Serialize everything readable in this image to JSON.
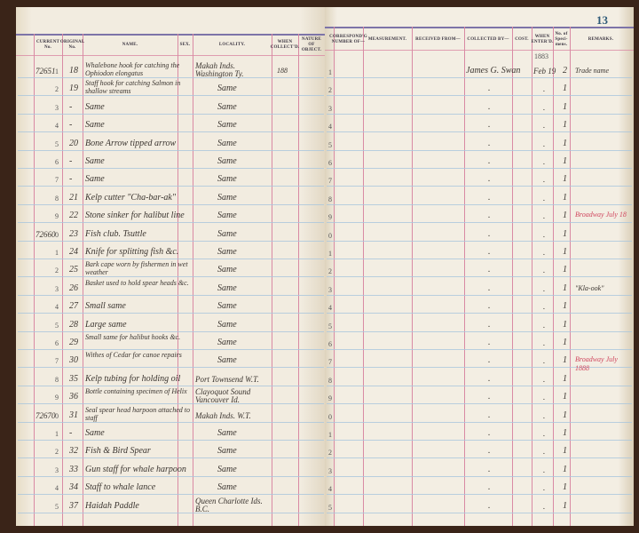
{
  "page_number": "13",
  "left_headers": [
    "CURRENT No.",
    "ORIGINAL No.",
    "NAME.",
    "SEX.",
    "LOCALITY.",
    "WHEN COLLECT'D.",
    "NATURE OF OBJECT."
  ],
  "right_headers": [
    "CORRESPOND'G NUMBER OF—",
    "MEASUREMENT.",
    "RECEIVED FROM—",
    "COLLECTED BY—",
    "COST.",
    "WHEN ENTER'D.",
    "No. of Speci-mens.",
    "REMARKS."
  ],
  "year_note": "1883",
  "rows": [
    {
      "line": "1",
      "current": "72651",
      "original": "18",
      "name": "Whalebone hook for catching the Ophiodon elongatus",
      "locality": "Makah Inds. Washington Ty.",
      "when": "188",
      "collected": "James G. Swan",
      "entered": "Feb 19",
      "specimens": "2",
      "remarks": "Trade name"
    },
    {
      "line": "2",
      "original": "19",
      "name": "Staff hook for catching Salmon in shallow streams",
      "locality": "Same",
      "collected": ".",
      "entered": ".",
      "specimens": "1"
    },
    {
      "line": "3",
      "original": "-",
      "name": "Same",
      "locality": "Same",
      "collected": ".",
      "entered": ".",
      "specimens": "1"
    },
    {
      "line": "4",
      "original": "-",
      "name": "Same",
      "locality": "Same",
      "collected": ".",
      "entered": ".",
      "specimens": "1"
    },
    {
      "line": "5",
      "original": "20",
      "name": "Bone Arrow tipped arrow",
      "locality": "Same",
      "collected": ".",
      "entered": ".",
      "specimens": "1"
    },
    {
      "line": "6",
      "original": "-",
      "name": "Same",
      "locality": "Same",
      "collected": ".",
      "entered": ".",
      "specimens": "1"
    },
    {
      "line": "7",
      "original": "-",
      "name": "Same",
      "locality": "Same",
      "collected": ".",
      "entered": ".",
      "specimens": "1"
    },
    {
      "line": "8",
      "original": "21",
      "name": "Kelp cutter \"Cha-bar-ak\"",
      "locality": "Same",
      "collected": ".",
      "entered": ".",
      "specimens": "1"
    },
    {
      "line": "9",
      "original": "22",
      "name": "Stone sinker for halibut line",
      "locality": "Same",
      "collected": ".",
      "entered": ".",
      "specimens": "1",
      "remarks_red": "Broadway July 18"
    },
    {
      "line": "0",
      "current": "72660",
      "original": "23",
      "name": "Fish club. Tsuttle",
      "locality": "Same",
      "collected": ".",
      "entered": ".",
      "specimens": "1"
    },
    {
      "line": "1",
      "original": "24",
      "name": "Knife for splitting fish &c.",
      "locality": "Same",
      "collected": ".",
      "entered": ".",
      "specimens": "1"
    },
    {
      "line": "2",
      "original": "25",
      "name": "Bark cape worn by fishermen in wet weather",
      "locality": "Same",
      "collected": ".",
      "entered": ".",
      "specimens": "1"
    },
    {
      "line": "3",
      "original": "26",
      "name": "Basket used to hold spear heads &c.",
      "locality": "Same",
      "collected": ".",
      "entered": ".",
      "specimens": "1",
      "remarks": "\"Kla-ook\""
    },
    {
      "line": "4",
      "original": "27",
      "name": "Small same",
      "locality": "Same",
      "collected": ".",
      "entered": ".",
      "specimens": "1"
    },
    {
      "line": "5",
      "original": "28",
      "name": "Large same",
      "locality": "Same",
      "collected": ".",
      "entered": ".",
      "specimens": "1"
    },
    {
      "line": "6",
      "original": "29",
      "name": "Small same for halibut hooks &c.",
      "locality": "Same",
      "collected": ".",
      "entered": ".",
      "specimens": "1"
    },
    {
      "line": "7",
      "original": "30",
      "name": "Withes of Cedar for canoe repairs",
      "locality": "Same",
      "collected": ".",
      "entered": ".",
      "specimens": "1",
      "remarks_red": "Broadway July 1888"
    },
    {
      "line": "8",
      "original": "35",
      "name": "Kelp tubing for holding oil",
      "locality": "Port Townsend W.T.",
      "collected": ".",
      "entered": ".",
      "specimens": "1"
    },
    {
      "line": "9",
      "original": "36",
      "name": "Bottle containing specimen of Helix",
      "locality": "Clayoquot Sound Vancouver Id.",
      "collected": ".",
      "entered": ".",
      "specimens": "1"
    },
    {
      "line": "0",
      "current": "72670",
      "original": "31",
      "name": "Seal spear head harpoon attached to staff",
      "locality": "Makah Inds. W.T.",
      "collected": ".",
      "entered": ".",
      "specimens": "1"
    },
    {
      "line": "1",
      "original": "-",
      "name": "Same",
      "locality": "Same",
      "collected": ".",
      "entered": ".",
      "specimens": "1"
    },
    {
      "line": "2",
      "original": "32",
      "name": "Fish & Bird Spear",
      "locality": "Same",
      "collected": ".",
      "entered": ".",
      "specimens": "1"
    },
    {
      "line": "3",
      "original": "33",
      "name": "Gun staff for whale harpoon",
      "locality": "Same",
      "collected": ".",
      "entered": ".",
      "specimens": "1"
    },
    {
      "line": "4",
      "original": "34",
      "name": "Staff to whale lance",
      "locality": "Same",
      "collected": ".",
      "entered": ".",
      "specimens": "1"
    },
    {
      "line": "5",
      "original": "37",
      "name": "Haidah Paddle",
      "locality": "Queen Charlotte Ids. B.C.",
      "collected": ".",
      "entered": ".",
      "specimens": "1"
    }
  ]
}
